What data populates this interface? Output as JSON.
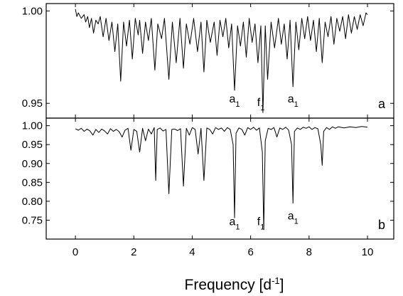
{
  "chart_data": {
    "type": "line",
    "xlabel": "Frequency [d",
    "xlabel_sup": "-1",
    "xlabel_close": "]",
    "xlim": [
      -1,
      10.9
    ],
    "xticks": [
      "0",
      "2",
      "4",
      "6",
      "8",
      "10"
    ],
    "xtick_values": [
      0,
      2,
      4,
      6,
      8,
      10
    ],
    "panels": [
      {
        "label": "a",
        "ylim": [
          0.942,
          1.004
        ],
        "ytick_values": [
          1.0,
          0.95
        ],
        "yticks": [
          "1.00",
          "0.95"
        ],
        "annotations": [
          {
            "x": 5.45,
            "y": 0.9505,
            "text": "a",
            "sub": "1"
          },
          {
            "x": 6.35,
            "y": 0.9485,
            "text": "f",
            "sub": "1"
          },
          {
            "x": 7.45,
            "y": 0.9505,
            "text": "a",
            "sub": "1"
          }
        ],
        "series": [
          {
            "x": [
              0.0,
              0.05,
              0.1,
              0.2,
              0.3,
              0.35,
              0.42,
              0.48,
              0.55,
              0.62,
              0.7,
              0.78,
              0.85,
              0.95,
              1.05,
              1.15,
              1.25,
              1.35,
              1.45,
              1.55,
              1.65,
              1.75,
              1.85,
              1.95,
              2.05,
              2.15,
              2.2,
              2.3,
              2.4,
              2.5,
              2.6,
              2.72,
              2.82,
              2.95,
              3.05,
              3.2,
              3.32,
              3.45,
              3.58,
              3.7,
              3.8,
              3.92,
              4.05,
              4.18,
              4.3,
              4.4,
              4.5,
              4.62,
              4.75,
              4.85,
              4.95,
              5.05,
              5.15,
              5.25,
              5.35,
              5.45,
              5.55,
              5.65,
              5.75,
              5.85,
              5.95,
              6.05,
              6.15,
              6.25,
              6.35,
              6.42,
              6.5,
              6.58,
              6.7,
              6.82,
              6.95,
              7.05,
              7.15,
              7.25,
              7.35,
              7.45,
              7.55,
              7.65,
              7.75,
              7.85,
              7.95,
              8.05,
              8.15,
              8.25,
              8.35,
              8.45,
              8.55,
              8.65,
              8.75,
              8.85,
              8.95,
              9.05,
              9.15,
              9.25,
              9.35,
              9.45,
              9.55,
              9.65,
              9.75,
              9.85,
              9.95,
              10.0
            ],
            "y": [
              1.001,
              0.997,
              0.999,
              0.996,
              0.998,
              0.994,
              0.997,
              0.991,
              0.996,
              0.988,
              0.995,
              0.993,
              0.997,
              0.986,
              0.996,
              0.984,
              0.994,
              0.978,
              0.993,
              0.962,
              0.994,
              0.981,
              0.995,
              0.974,
              0.996,
              0.987,
              0.995,
              0.977,
              0.994,
              0.984,
              0.996,
              0.968,
              0.993,
              0.985,
              0.996,
              0.963,
              0.994,
              0.972,
              0.996,
              0.969,
              0.993,
              0.982,
              0.996,
              0.978,
              0.994,
              0.967,
              0.995,
              0.983,
              0.994,
              0.976,
              0.995,
              0.986,
              0.996,
              0.98,
              0.993,
              0.957,
              0.992,
              0.981,
              0.994,
              0.975,
              0.996,
              0.983,
              0.993,
              0.972,
              0.992,
              0.945,
              0.992,
              0.963,
              0.994,
              0.98,
              0.996,
              0.982,
              0.993,
              0.974,
              0.995,
              0.959,
              0.994,
              0.979,
              0.996,
              0.985,
              0.997,
              0.984,
              0.995,
              0.978,
              0.996,
              0.972,
              0.994,
              0.986,
              0.997,
              0.982,
              0.996,
              0.989,
              0.997,
              0.985,
              0.998,
              0.988,
              0.997,
              0.99,
              0.998,
              0.992,
              0.999,
              0.998
            ]
          }
        ]
      },
      {
        "label": "b",
        "ylim": [
          0.7,
          1.02
        ],
        "ytick_values": [
          1.0,
          0.95,
          0.9,
          0.85,
          0.8,
          0.75
        ],
        "yticks": [
          "1.00",
          "0.95",
          "0.90",
          "0.85",
          "0.80",
          "0.75"
        ],
        "annotations": [
          {
            "x": 5.45,
            "y": 0.737,
            "text": "a",
            "sub": "1"
          },
          {
            "x": 6.35,
            "y": 0.737,
            "text": "f",
            "sub": "1"
          },
          {
            "x": 7.45,
            "y": 0.752,
            "text": "a",
            "sub": "1"
          }
        ],
        "series": [
          {
            "x": [
              0.0,
              0.1,
              0.2,
              0.3,
              0.4,
              0.5,
              0.6,
              0.7,
              0.8,
              0.9,
              1.0,
              1.1,
              1.2,
              1.3,
              1.4,
              1.5,
              1.6,
              1.7,
              1.8,
              1.9,
              2.0,
              2.1,
              2.2,
              2.3,
              2.4,
              2.5,
              2.6,
              2.7,
              2.75,
              2.8,
              2.9,
              3.0,
              3.1,
              3.2,
              3.3,
              3.4,
              3.5,
              3.6,
              3.7,
              3.8,
              3.9,
              4.0,
              4.1,
              4.2,
              4.3,
              4.4,
              4.5,
              4.6,
              4.7,
              4.8,
              4.9,
              5.0,
              5.1,
              5.2,
              5.3,
              5.4,
              5.45,
              5.5,
              5.6,
              5.7,
              5.8,
              5.9,
              6.0,
              6.1,
              6.2,
              6.3,
              6.4,
              6.45,
              6.5,
              6.6,
              6.7,
              6.8,
              6.9,
              7.0,
              7.1,
              7.2,
              7.3,
              7.4,
              7.45,
              7.5,
              7.6,
              7.7,
              7.8,
              7.9,
              8.0,
              8.1,
              8.2,
              8.3,
              8.4,
              8.45,
              8.5,
              8.6,
              8.7,
              8.8,
              8.9,
              9.0,
              9.2,
              9.4,
              9.6,
              9.8,
              10.0
            ],
            "y": [
              0.992,
              0.988,
              0.993,
              0.985,
              0.991,
              0.986,
              0.975,
              0.99,
              0.982,
              0.991,
              0.986,
              0.978,
              0.992,
              0.985,
              0.99,
              0.984,
              0.97,
              0.988,
              0.993,
              0.935,
              0.99,
              0.985,
              0.93,
              0.993,
              0.96,
              0.991,
              0.978,
              0.995,
              0.855,
              0.99,
              0.994,
              0.986,
              0.99,
              0.82,
              0.99,
              0.991,
              0.987,
              0.992,
              0.84,
              0.993,
              0.975,
              0.995,
              0.99,
              0.925,
              0.993,
              0.855,
              0.994,
              0.99,
              0.978,
              0.995,
              0.99,
              0.994,
              0.985,
              0.995,
              0.99,
              0.95,
              0.756,
              0.98,
              0.994,
              0.99,
              0.975,
              0.995,
              0.99,
              0.996,
              0.988,
              0.994,
              0.93,
              0.725,
              0.96,
              0.993,
              0.99,
              0.995,
              0.97,
              0.994,
              0.99,
              0.996,
              0.988,
              0.95,
              0.795,
              0.985,
              0.994,
              0.99,
              0.996,
              0.993,
              0.997,
              0.99,
              0.995,
              0.992,
              0.95,
              0.895,
              0.985,
              0.995,
              0.99,
              0.997,
              0.993,
              0.997,
              0.994,
              0.997,
              0.995,
              0.998,
              0.996
            ]
          }
        ]
      }
    ]
  }
}
